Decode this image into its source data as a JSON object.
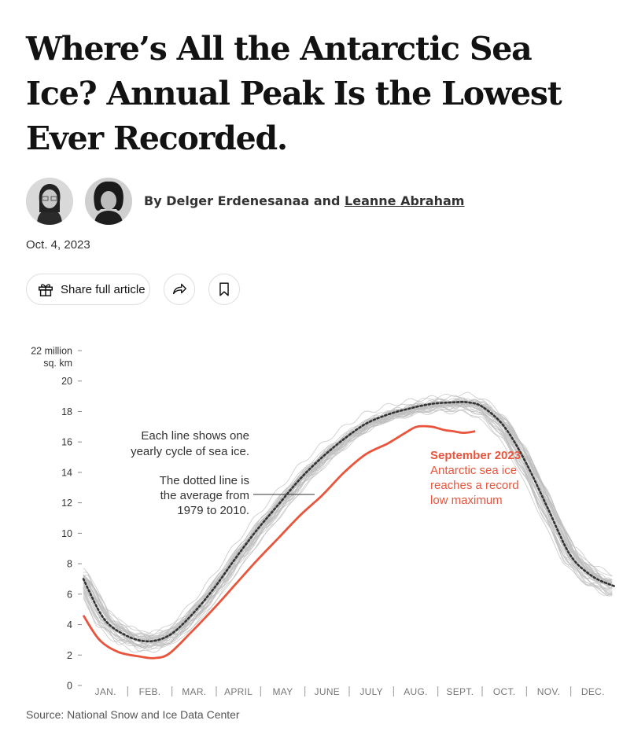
{
  "article": {
    "headline": "Where’s All the Antarctic Sea Ice? Annual Peak Is the Lowest Ever Recorded.",
    "byline_prefix": "By Delger Erdenesanaa and ",
    "byline_author2": "Leanne Abraham",
    "date": "Oct. 4, 2023",
    "share_label": "Share full article",
    "source": "Source: National Snow and Ice Data Center"
  },
  "icons": {
    "gift": "gift-icon",
    "share": "share-arrow-icon",
    "save": "bookmark-icon"
  },
  "chart_data": {
    "type": "line",
    "xlabel": "",
    "ylabel": "",
    "y_unit_top": "22 million",
    "y_unit_bottom": "sq. km",
    "ylim": [
      0,
      22
    ],
    "yticks": [
      0,
      2,
      4,
      6,
      8,
      10,
      12,
      14,
      16,
      18,
      20,
      22
    ],
    "ytick_labels": [
      "0",
      "2",
      "4",
      "6",
      "8",
      "10",
      "12",
      "14",
      "16",
      "18",
      "20",
      ""
    ],
    "x_domain_day_of_year": [
      1,
      366
    ],
    "months": [
      "JAN.",
      "FEB.",
      "MAR.",
      "APRIL",
      "MAY",
      "JUNE",
      "JULY",
      "AUG.",
      "SEPT.",
      "OCT.",
      "NOV.",
      "DEC."
    ],
    "grid": false,
    "colors": {
      "average": "#333333",
      "history": "#bdbdbd",
      "highlight": "#e9553c"
    },
    "annotations": {
      "each_line": [
        "Each line shows one",
        "yearly cycle of sea ice."
      ],
      "dotted_line": [
        "The dotted line is",
        "the average from",
        "1979 to 2010."
      ],
      "highlight_title": "September 2023",
      "highlight_body": [
        "Antarctic sea ice",
        "reaches a record",
        "low maximum"
      ]
    },
    "series": [
      {
        "role": "average 1979 to 2010",
        "x": [
          1,
          15,
          30,
          45,
          60,
          75,
          90,
          105,
          120,
          135,
          150,
          165,
          180,
          195,
          210,
          225,
          240,
          255,
          265,
          275,
          290,
          305,
          320,
          335,
          350,
          366
        ],
        "y": [
          7.0,
          4.4,
          3.3,
          2.9,
          3.3,
          4.6,
          6.3,
          8.3,
          10.2,
          11.9,
          13.6,
          15.0,
          16.2,
          17.2,
          17.8,
          18.2,
          18.5,
          18.6,
          18.6,
          18.3,
          17.0,
          14.6,
          11.6,
          8.6,
          7.2,
          6.5
        ]
      },
      {
        "role": "2023",
        "x": [
          1,
          12,
          25,
          40,
          50,
          60,
          75,
          90,
          105,
          120,
          135,
          150,
          165,
          180,
          195,
          210,
          222,
          230,
          240,
          248,
          255,
          262,
          270
        ],
        "y": [
          4.6,
          3.0,
          2.2,
          1.9,
          1.8,
          2.1,
          3.5,
          5.0,
          6.6,
          8.2,
          9.7,
          11.2,
          12.5,
          14.0,
          15.2,
          15.9,
          16.6,
          17.0,
          17.0,
          16.8,
          16.7,
          16.6,
          16.7
        ]
      }
    ]
  }
}
